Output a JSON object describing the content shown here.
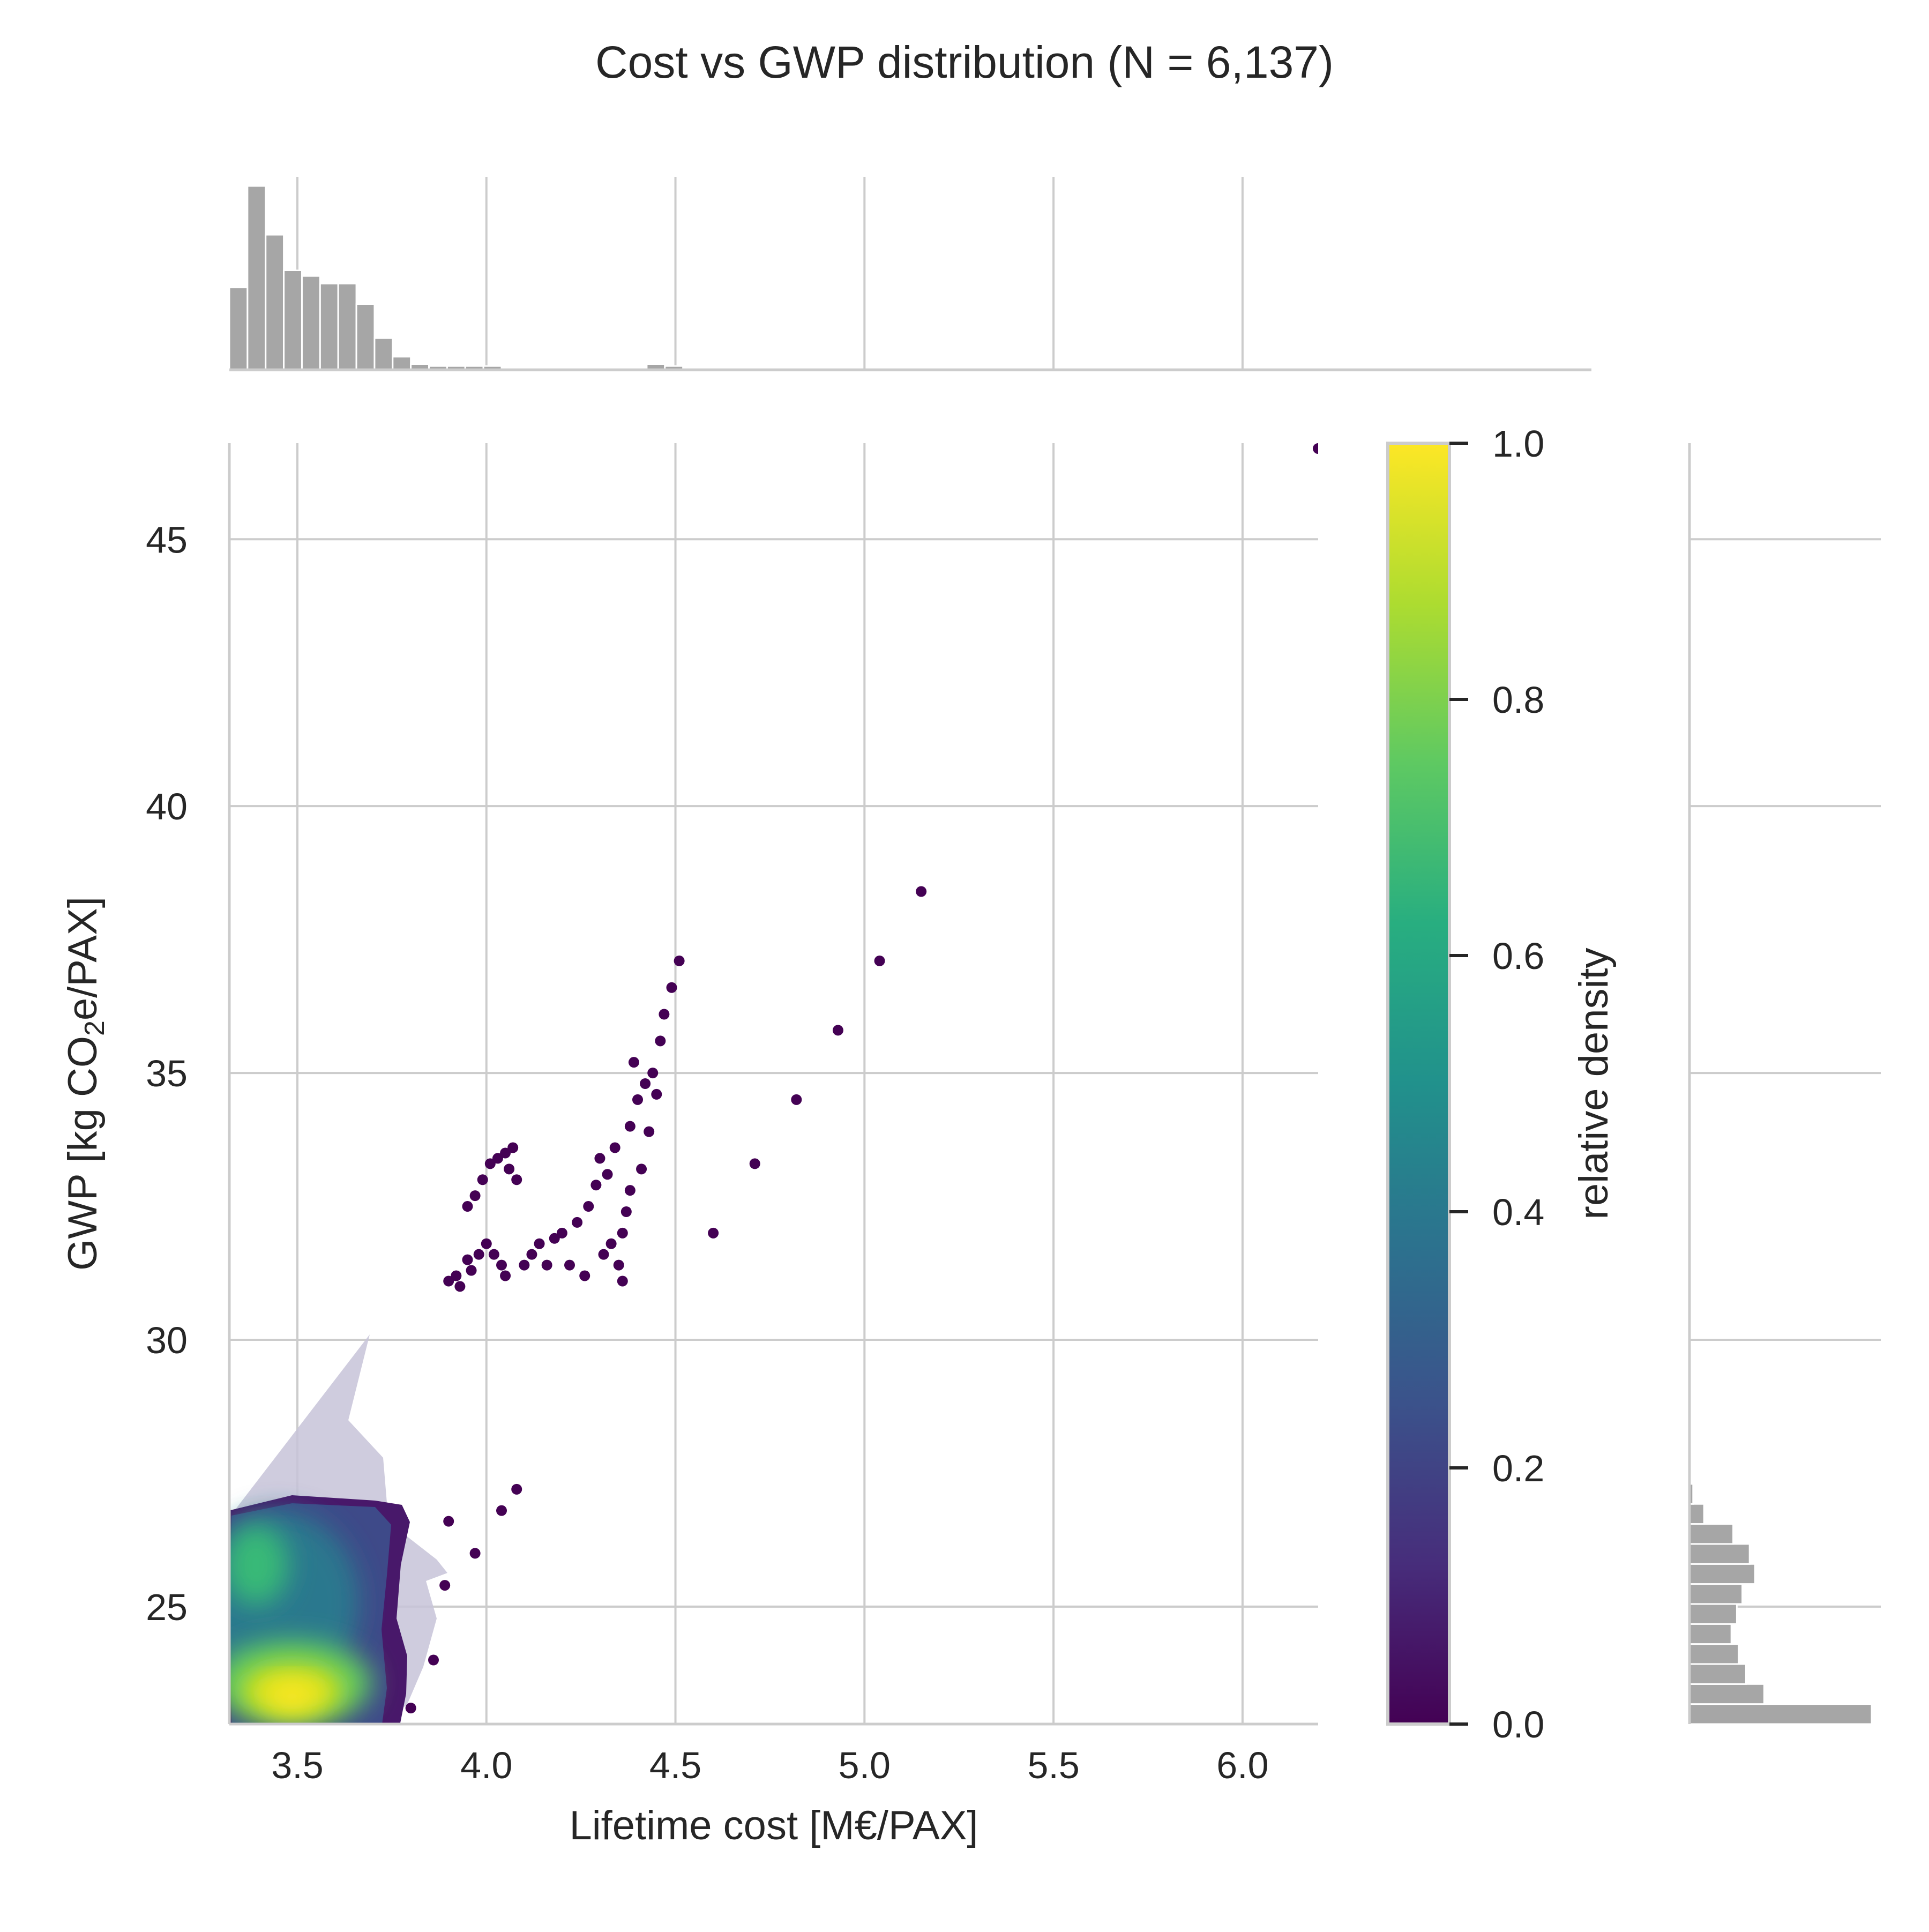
{
  "chart_data": {
    "type": "scatter",
    "title": "Cost vs GWP distribution  (N = 6,137)",
    "xlabel": "Lifetime cost [M€/PAX]",
    "ylabel_parts": [
      "GWP [kg CO",
      "2",
      "e/PAX]"
    ],
    "xlim": [
      3.32,
      6.2
    ],
    "ylim": [
      22.8,
      46.8
    ],
    "xticks": [
      "3.5",
      "4.0",
      "4.5",
      "5.0",
      "5.5",
      "6.0"
    ],
    "yticks": [
      "25",
      "30",
      "35",
      "40",
      "45"
    ],
    "grid": true,
    "colorbar": {
      "label": "relative density",
      "colormap": "viridis",
      "ticks": [
        "0.0",
        "0.2",
        "0.4",
        "0.6",
        "0.8",
        "1.0"
      ]
    },
    "outliers": [
      [
        3.9,
        31.1
      ],
      [
        3.92,
        31.2
      ],
      [
        3.93,
        31.0
      ],
      [
        3.95,
        31.5
      ],
      [
        3.96,
        31.3
      ],
      [
        3.98,
        31.6
      ],
      [
        4.0,
        31.8
      ],
      [
        4.02,
        31.6
      ],
      [
        4.04,
        31.4
      ],
      [
        4.05,
        31.2
      ],
      [
        3.95,
        32.5
      ],
      [
        3.97,
        32.7
      ],
      [
        3.99,
        33.0
      ],
      [
        4.01,
        33.3
      ],
      [
        4.03,
        33.4
      ],
      [
        4.05,
        33.5
      ],
      [
        4.06,
        33.2
      ],
      [
        4.07,
        33.6
      ],
      [
        4.08,
        33.0
      ],
      [
        4.1,
        31.4
      ],
      [
        4.12,
        31.6
      ],
      [
        4.14,
        31.8
      ],
      [
        4.16,
        31.4
      ],
      [
        4.18,
        31.9
      ],
      [
        4.2,
        32.0
      ],
      [
        4.22,
        31.4
      ],
      [
        4.24,
        32.2
      ],
      [
        4.26,
        31.2
      ],
      [
        4.27,
        32.5
      ],
      [
        4.29,
        32.9
      ],
      [
        4.3,
        33.4
      ],
      [
        4.31,
        31.6
      ],
      [
        4.32,
        33.1
      ],
      [
        4.33,
        31.8
      ],
      [
        4.34,
        33.6
      ],
      [
        4.35,
        31.4
      ],
      [
        4.36,
        31.1
      ],
      [
        4.36,
        32.0
      ],
      [
        4.37,
        32.4
      ],
      [
        4.38,
        32.8
      ],
      [
        4.38,
        34.0
      ],
      [
        4.39,
        35.2
      ],
      [
        4.4,
        34.5
      ],
      [
        4.41,
        33.2
      ],
      [
        4.42,
        34.8
      ],
      [
        4.43,
        33.9
      ],
      [
        4.44,
        35.0
      ],
      [
        4.45,
        34.6
      ],
      [
        4.46,
        35.6
      ],
      [
        4.47,
        36.1
      ],
      [
        4.49,
        36.6
      ],
      [
        4.51,
        37.1
      ],
      [
        4.6,
        32.0
      ],
      [
        4.71,
        33.3
      ],
      [
        4.82,
        34.5
      ],
      [
        4.93,
        35.8
      ],
      [
        5.04,
        37.1
      ],
      [
        5.15,
        38.4
      ],
      [
        6.2,
        46.7
      ],
      [
        3.9,
        26.6
      ],
      [
        3.97,
        26.0
      ],
      [
        4.04,
        26.8
      ],
      [
        4.08,
        27.2
      ],
      [
        3.89,
        25.4
      ],
      [
        3.86,
        24.0
      ],
      [
        3.8,
        23.1
      ]
    ],
    "top_hist": {
      "range": [
        3.32,
        6.2
      ],
      "values": [
        0.44,
        0.98,
        0.72,
        0.53,
        0.5,
        0.46,
        0.46,
        0.35,
        0.17,
        0.07,
        0.03,
        0.02,
        0.02,
        0.02,
        0.02,
        0.01,
        0.01,
        0.0,
        0.0,
        0.0,
        0.0,
        0.01,
        0.01,
        0.03,
        0.02,
        0.0,
        0.0,
        0.0,
        0.0,
        0.0,
        0.0,
        0.0,
        0.0,
        0.0,
        0.0,
        0.0,
        0.0,
        0.0,
        0.0,
        0.0,
        0.0,
        0.0,
        0.0,
        0.0,
        0.0,
        0.0,
        0.0,
        0.0,
        0.0,
        0.0,
        0.0,
        0.0,
        0.0,
        0.0,
        0.0,
        0.0,
        0.0,
        0.0,
        0.0,
        0.0
      ]
    },
    "right_hist": {
      "range": [
        22.8,
        46.8
      ],
      "values": [
        1.0,
        0.41,
        0.31,
        0.27,
        0.23,
        0.26,
        0.29,
        0.36,
        0.33,
        0.24,
        0.08,
        0.02,
        0.0,
        0.0,
        0.0,
        0.0,
        0.0,
        0.0,
        0.0,
        0.0,
        0.0,
        0.0,
        0.0,
        0.0,
        0.0,
        0.0,
        0.0,
        0.01,
        0.0,
        0.0,
        0.0,
        0.0,
        0.0,
        0.0,
        0.0,
        0.0,
        0.0,
        0.0,
        0.0,
        0.0,
        0.0,
        0.0,
        0.0,
        0.0,
        0.0,
        0.0,
        0.0,
        0.0,
        0.0,
        0.0,
        0.0,
        0.0,
        0.0,
        0.0,
        0.0,
        0.0,
        0.0,
        0.0,
        0.0,
        0.0,
        0.0,
        0.0,
        0.0,
        0.0
      ]
    }
  }
}
